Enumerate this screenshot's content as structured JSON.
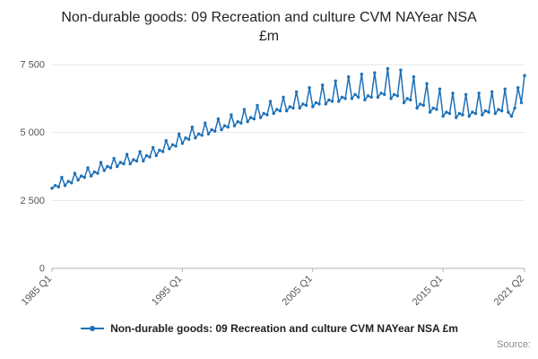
{
  "title": "Non-durable goods: 09 Recreation and culture CVM NAYear NSA £m",
  "legend": {
    "label": "Non-durable goods: 09 Recreation and culture CVM NAYear NSA £m"
  },
  "source_label": "Source:",
  "colors": {
    "line": "#1d70b8",
    "grid": "#e6e6e6",
    "axis": "#b3b3b3",
    "tick_text": "#555555"
  },
  "chart_data": {
    "type": "line",
    "title": "Non-durable goods: 09 Recreation and culture CVM NAYear NSA £m",
    "xlabel": "",
    "ylabel": "",
    "x_start": "1985 Q1",
    "x_end": "2021 Q2",
    "frequency": "quarterly",
    "ylim": [
      0,
      7500
    ],
    "grid": true,
    "legend_position": "bottom",
    "marker": "circle",
    "y_ticks": [
      {
        "value": 0,
        "label": "0"
      },
      {
        "value": 2500,
        "label": "2 500"
      },
      {
        "value": 5000,
        "label": "5 000"
      },
      {
        "value": 7500,
        "label": "7 500"
      }
    ],
    "x_ticks": [
      {
        "index": 0,
        "label": "1985 Q1"
      },
      {
        "index": 40,
        "label": "1995 Q1"
      },
      {
        "index": 80,
        "label": "2005 Q1"
      },
      {
        "index": 120,
        "label": "2015 Q1"
      },
      {
        "index": 145,
        "label": "2021 Q2"
      }
    ],
    "series": [
      {
        "name": "Non-durable goods: 09 Recreation and culture CVM NAYear NSA £m",
        "values": [
          2950,
          3050,
          3000,
          3350,
          3050,
          3200,
          3150,
          3500,
          3250,
          3400,
          3350,
          3700,
          3400,
          3550,
          3500,
          3900,
          3600,
          3750,
          3700,
          4050,
          3750,
          3900,
          3850,
          4200,
          3850,
          4000,
          3950,
          4300,
          3950,
          4150,
          4100,
          4450,
          4150,
          4350,
          4300,
          4700,
          4400,
          4550,
          4500,
          4950,
          4600,
          4800,
          4750,
          5200,
          4800,
          4950,
          4900,
          5350,
          4950,
          5100,
          5050,
          5500,
          5100,
          5250,
          5200,
          5650,
          5250,
          5400,
          5350,
          5850,
          5400,
          5550,
          5500,
          6000,
          5550,
          5700,
          5650,
          6150,
          5700,
          5850,
          5800,
          6300,
          5800,
          5950,
          5900,
          6500,
          5900,
          6050,
          6000,
          6650,
          5950,
          6100,
          6050,
          6750,
          6050,
          6200,
          6150,
          6900,
          6150,
          6300,
          6250,
          7050,
          6250,
          6400,
          6300,
          7150,
          6200,
          6350,
          6300,
          7200,
          6300,
          6450,
          6400,
          7350,
          6250,
          6400,
          6350,
          7300,
          6100,
          6250,
          6200,
          7050,
          5900,
          6050,
          6000,
          6800,
          5750,
          5900,
          5850,
          6600,
          5600,
          5750,
          5700,
          6450,
          5550,
          5700,
          5650,
          6400,
          5600,
          5750,
          5700,
          6450,
          5650,
          5800,
          5750,
          6500,
          5700,
          5850,
          5800,
          6600,
          5750,
          5600,
          5900,
          6650,
          6100,
          7100
        ]
      }
    ]
  }
}
